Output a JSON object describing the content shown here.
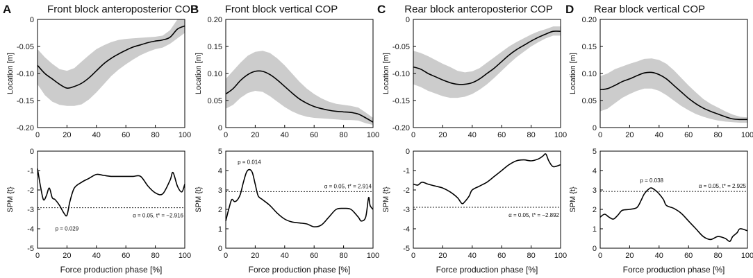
{
  "figure": {
    "xlabel": "Force production phase [%]"
  },
  "chart_data": [
    {
      "panel": "A",
      "title": "Front block anteroposterior COP",
      "type": "line",
      "role": "location",
      "ylabel": "Location [m]",
      "ylim": [
        -0.2,
        0
      ],
      "xlim": [
        0,
        100
      ],
      "yticks": [
        0,
        -0.05,
        -0.1,
        -0.15,
        -0.2
      ],
      "yticklabels": [
        "0",
        "-0.05",
        "-0.10",
        "-0.15",
        "-0.20"
      ],
      "xticks": [
        0,
        20,
        40,
        60,
        80,
        100
      ],
      "xticklabels": [
        "0",
        "20",
        "40",
        "60",
        "80",
        "100"
      ],
      "x": [
        0,
        5,
        10,
        15,
        20,
        25,
        30,
        35,
        40,
        45,
        50,
        55,
        60,
        65,
        70,
        75,
        80,
        85,
        90,
        95,
        100
      ],
      "mean": [
        -0.085,
        -0.1,
        -0.11,
        -0.12,
        -0.127,
        -0.124,
        -0.118,
        -0.108,
        -0.095,
        -0.082,
        -0.072,
        -0.064,
        -0.057,
        -0.051,
        -0.047,
        -0.043,
        -0.04,
        -0.038,
        -0.033,
        -0.018,
        -0.012
      ],
      "lower": [
        -0.12,
        -0.14,
        -0.152,
        -0.158,
        -0.16,
        -0.16,
        -0.157,
        -0.148,
        -0.135,
        -0.12,
        -0.105,
        -0.093,
        -0.083,
        -0.074,
        -0.066,
        -0.06,
        -0.055,
        -0.052,
        -0.045,
        -0.035,
        -0.025
      ],
      "upper": [
        -0.055,
        -0.07,
        -0.082,
        -0.092,
        -0.095,
        -0.09,
        -0.078,
        -0.066,
        -0.055,
        -0.048,
        -0.042,
        -0.038,
        -0.036,
        -0.035,
        -0.034,
        -0.033,
        -0.032,
        -0.03,
        -0.02,
        0,
        0
      ]
    },
    {
      "panel": "A",
      "type": "line",
      "role": "spm",
      "ylabel": "SPM {t}",
      "ylim": [
        -5,
        0
      ],
      "xlim": [
        0,
        100
      ],
      "yticks": [
        0,
        -1,
        -2,
        -3,
        -4,
        -5
      ],
      "yticklabels": [
        "0",
        "-1",
        "-2",
        "-3",
        "-4",
        "-5"
      ],
      "xticks": [
        0,
        20,
        40,
        60,
        80,
        100
      ],
      "xticklabels": [
        "0",
        "20",
        "40",
        "60",
        "80",
        "100"
      ],
      "x": [
        0,
        2,
        4,
        6,
        8,
        10,
        12,
        15,
        18,
        20,
        22,
        25,
        30,
        35,
        40,
        45,
        50,
        55,
        60,
        65,
        70,
        75,
        80,
        85,
        90,
        92,
        95,
        98,
        100
      ],
      "t": [
        -0.9,
        -1.8,
        -2.5,
        -2.3,
        -1.9,
        -2.4,
        -2.5,
        -2.8,
        -3.2,
        -3.3,
        -2.6,
        -1.9,
        -1.6,
        -1.4,
        -1.2,
        -1.25,
        -1.3,
        -1.3,
        -1.3,
        -1.3,
        -1.3,
        -1.8,
        -2.15,
        -2.2,
        -1.5,
        -1.1,
        -1.8,
        -2.1,
        -1.7
      ],
      "threshold": -2.916,
      "threshold_label": "α = 0.05, t* = −2.916",
      "p_label": "p = 0.029"
    },
    {
      "panel": "B",
      "title": "Front block vertical COP",
      "type": "line",
      "role": "location",
      "ylabel": "Location [m]",
      "ylim": [
        0,
        0.2
      ],
      "xlim": [
        0,
        100
      ],
      "yticks": [
        0,
        0.05,
        0.1,
        0.15,
        0.2
      ],
      "yticklabels": [
        "0",
        "0.05",
        "0.10",
        "0.15",
        "0.20"
      ],
      "xticks": [
        0,
        20,
        40,
        60,
        80,
        100
      ],
      "xticklabels": [
        "0",
        "20",
        "40",
        "60",
        "80",
        "100"
      ],
      "x": [
        0,
        5,
        10,
        15,
        20,
        25,
        30,
        35,
        40,
        45,
        50,
        55,
        60,
        65,
        70,
        75,
        80,
        85,
        90,
        95,
        100
      ],
      "mean": [
        0.062,
        0.072,
        0.087,
        0.098,
        0.104,
        0.104,
        0.098,
        0.088,
        0.076,
        0.064,
        0.053,
        0.045,
        0.039,
        0.035,
        0.032,
        0.03,
        0.029,
        0.028,
        0.025,
        0.018,
        0.01
      ],
      "lower": [
        0.035,
        0.042,
        0.055,
        0.064,
        0.068,
        0.066,
        0.058,
        0.048,
        0.038,
        0.03,
        0.024,
        0.02,
        0.018,
        0.017,
        0.016,
        0.015,
        0.014,
        0.014,
        0.013,
        0.008,
        0.005
      ],
      "upper": [
        0.09,
        0.105,
        0.12,
        0.133,
        0.14,
        0.142,
        0.138,
        0.128,
        0.115,
        0.1,
        0.085,
        0.072,
        0.062,
        0.054,
        0.048,
        0.044,
        0.042,
        0.04,
        0.037,
        0.028,
        0.018
      ]
    },
    {
      "panel": "B",
      "type": "line",
      "role": "spm",
      "ylabel": "SPM {t}",
      "ylim": [
        0,
        5
      ],
      "xlim": [
        0,
        100
      ],
      "yticks": [
        5,
        4,
        3,
        2,
        1,
        0
      ],
      "yticklabels": [
        "5",
        "4",
        "3",
        "2",
        "1",
        "0"
      ],
      "xticks": [
        0,
        20,
        40,
        60,
        80,
        100
      ],
      "xticklabels": [
        "0",
        "20",
        "40",
        "60",
        "80",
        "100"
      ],
      "x": [
        0,
        2,
        4,
        6,
        8,
        10,
        12,
        14,
        16,
        18,
        20,
        22,
        25,
        30,
        35,
        40,
        45,
        50,
        55,
        60,
        65,
        70,
        75,
        80,
        85,
        90,
        92,
        95,
        97,
        98,
        100
      ],
      "t": [
        1.4,
        2.0,
        2.5,
        2.4,
        2.5,
        2.8,
        3.4,
        3.9,
        4.05,
        3.9,
        3.3,
        2.7,
        2.5,
        2.2,
        1.8,
        1.5,
        1.35,
        1.3,
        1.25,
        1.1,
        1.2,
        1.6,
        2.0,
        2.05,
        2.0,
        1.6,
        1.4,
        1.6,
        2.6,
        2.2,
        2.0
      ],
      "threshold": 2.914,
      "threshold_label": "α = 0.05, t* = 2.914",
      "p_label": "p = 0.014"
    },
    {
      "panel": "C",
      "title": "Rear block anteroposterior COP",
      "type": "line",
      "role": "location",
      "ylabel": "Location [m]",
      "ylim": [
        -0.2,
        0
      ],
      "xlim": [
        0,
        100
      ],
      "yticks": [
        0,
        -0.05,
        -0.1,
        -0.15,
        -0.2
      ],
      "yticklabels": [
        "0",
        "-0.05",
        "-0.10",
        "-0.15",
        "-0.20"
      ],
      "xticks": [
        0,
        20,
        40,
        60,
        80,
        100
      ],
      "xticklabels": [
        "0",
        "20",
        "40",
        "60",
        "80",
        "100"
      ],
      "x": [
        0,
        5,
        10,
        15,
        20,
        25,
        30,
        35,
        40,
        45,
        50,
        55,
        60,
        65,
        70,
        75,
        80,
        85,
        90,
        95,
        100
      ],
      "mean": [
        -0.088,
        -0.092,
        -0.1,
        -0.106,
        -0.112,
        -0.117,
        -0.12,
        -0.12,
        -0.117,
        -0.11,
        -0.1,
        -0.09,
        -0.078,
        -0.066,
        -0.056,
        -0.048,
        -0.04,
        -0.033,
        -0.027,
        -0.022,
        -0.022
      ],
      "lower": [
        -0.12,
        -0.125,
        -0.132,
        -0.137,
        -0.142,
        -0.145,
        -0.145,
        -0.143,
        -0.138,
        -0.13,
        -0.12,
        -0.108,
        -0.095,
        -0.082,
        -0.07,
        -0.06,
        -0.05,
        -0.042,
        -0.035,
        -0.03,
        -0.03
      ],
      "upper": [
        -0.058,
        -0.062,
        -0.068,
        -0.075,
        -0.082,
        -0.088,
        -0.095,
        -0.098,
        -0.096,
        -0.09,
        -0.08,
        -0.07,
        -0.06,
        -0.05,
        -0.042,
        -0.035,
        -0.028,
        -0.022,
        -0.018,
        -0.013,
        -0.013
      ]
    },
    {
      "panel": "C",
      "type": "line",
      "role": "spm",
      "ylabel": "SPM {t}",
      "ylim": [
        -5,
        0
      ],
      "xlim": [
        0,
        100
      ],
      "yticks": [
        0,
        -1,
        -2,
        -3,
        -4,
        -5
      ],
      "yticklabels": [
        "0",
        "-1",
        "-2",
        "-3",
        "-4",
        "-5"
      ],
      "xticks": [
        0,
        20,
        40,
        60,
        80,
        100
      ],
      "xticklabels": [
        "0",
        "20",
        "40",
        "60",
        "80",
        "100"
      ],
      "x": [
        0,
        3,
        6,
        10,
        15,
        20,
        25,
        30,
        33,
        35,
        38,
        40,
        45,
        50,
        55,
        60,
        65,
        70,
        75,
        80,
        85,
        88,
        90,
        92,
        95,
        100
      ],
      "t": [
        -1.7,
        -1.75,
        -1.6,
        -1.7,
        -1.8,
        -1.9,
        -2.1,
        -2.4,
        -2.7,
        -2.6,
        -2.3,
        -2.0,
        -1.8,
        -1.6,
        -1.3,
        -1.0,
        -0.7,
        -0.5,
        -0.45,
        -0.5,
        -0.4,
        -0.25,
        -0.15,
        -0.5,
        -0.8,
        -0.7
      ],
      "threshold": -2.892,
      "threshold_label": "α = 0.05, t* = −2.892"
    },
    {
      "panel": "D",
      "title": "Rear block vertical COP",
      "type": "line",
      "role": "location",
      "ylabel": "Location [m]",
      "ylim": [
        0,
        0.2
      ],
      "xlim": [
        0,
        100
      ],
      "yticks": [
        0,
        0.05,
        0.1,
        0.15,
        0.2
      ],
      "yticklabels": [
        "0",
        "0.05",
        "0.10",
        "0.15",
        "0.20"
      ],
      "xticks": [
        0,
        20,
        40,
        60,
        80,
        100
      ],
      "xticklabels": [
        "0",
        "20",
        "40",
        "60",
        "80",
        "100"
      ],
      "x": [
        0,
        5,
        10,
        15,
        20,
        25,
        30,
        35,
        40,
        45,
        50,
        55,
        60,
        65,
        70,
        75,
        80,
        85,
        90,
        95,
        100
      ],
      "mean": [
        0.07,
        0.072,
        0.078,
        0.085,
        0.09,
        0.096,
        0.101,
        0.102,
        0.098,
        0.09,
        0.078,
        0.066,
        0.054,
        0.044,
        0.036,
        0.03,
        0.025,
        0.02,
        0.016,
        0.015,
        0.015
      ],
      "lower": [
        0.03,
        0.035,
        0.045,
        0.055,
        0.062,
        0.068,
        0.072,
        0.072,
        0.068,
        0.06,
        0.05,
        0.04,
        0.032,
        0.025,
        0.02,
        0.016,
        0.013,
        0.011,
        0.01,
        0.009,
        0.009
      ],
      "upper": [
        0.095,
        0.1,
        0.108,
        0.113,
        0.118,
        0.122,
        0.127,
        0.128,
        0.125,
        0.118,
        0.106,
        0.092,
        0.078,
        0.065,
        0.053,
        0.044,
        0.037,
        0.03,
        0.024,
        0.02,
        0.019
      ]
    },
    {
      "panel": "D",
      "type": "line",
      "role": "spm",
      "ylabel": "SPM {t}",
      "ylim": [
        0,
        5
      ],
      "xlim": [
        0,
        100
      ],
      "yticks": [
        5,
        4,
        3,
        2,
        1,
        0
      ],
      "yticklabels": [
        "5",
        "4",
        "3",
        "2",
        "1",
        "0"
      ],
      "xticks": [
        0,
        20,
        40,
        60,
        80,
        100
      ],
      "xticklabels": [
        "0",
        "20",
        "40",
        "60",
        "80",
        "100"
      ],
      "x": [
        0,
        3,
        6,
        9,
        12,
        15,
        20,
        25,
        28,
        30,
        33,
        35,
        38,
        40,
        43,
        45,
        50,
        55,
        60,
        65,
        70,
        75,
        80,
        85,
        88,
        90,
        93,
        95,
        100
      ],
      "t": [
        1.6,
        1.75,
        1.6,
        1.5,
        1.7,
        1.95,
        2.0,
        2.1,
        2.5,
        2.8,
        3.05,
        3.1,
        2.95,
        2.8,
        2.5,
        2.2,
        2.05,
        1.8,
        1.4,
        1.0,
        0.6,
        0.45,
        0.6,
        0.5,
        0.35,
        0.6,
        0.8,
        1.0,
        0.9
      ],
      "threshold": 2.925,
      "threshold_label": "α = 0.05, t* = 2.925",
      "p_label": "p = 0.038"
    }
  ]
}
